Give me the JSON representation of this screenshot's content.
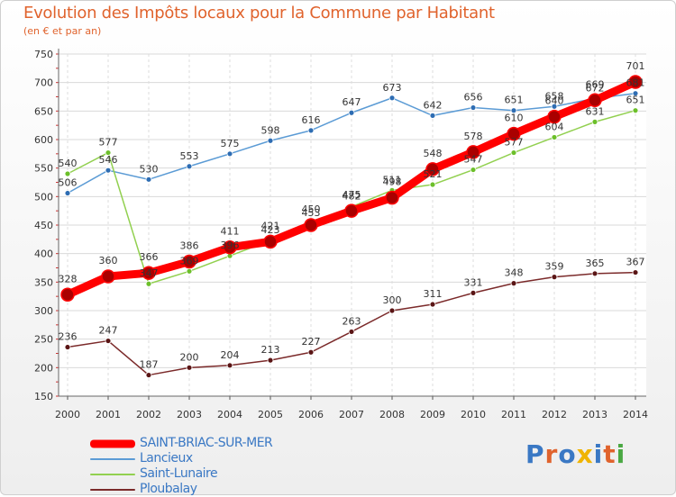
{
  "header": {
    "title": "Evolution des Impôts locaux pour la Commune par Habitant",
    "subtitle": "(en € et par an)"
  },
  "brand": {
    "text": "Proxiti",
    "colors": [
      "#3a78c4",
      "#e0632d",
      "#3a78c4",
      "#f0b400",
      "#3a78c4",
      "#e0632d",
      "#49a842"
    ]
  },
  "chart_data": {
    "type": "line",
    "title": "Evolution des Impôts locaux pour la Commune par Habitant",
    "subtitle": "(en € et par an)",
    "xlabel": "",
    "ylabel": "",
    "ylim": [
      150,
      750
    ],
    "yticks": [
      150,
      200,
      250,
      300,
      350,
      400,
      450,
      500,
      550,
      600,
      650,
      700,
      750
    ],
    "grid": true,
    "legend_position": "bottom-left",
    "categories": [
      "2000",
      "2001",
      "2002",
      "2003",
      "2004",
      "2005",
      "2006",
      "2007",
      "2008",
      "2009",
      "2010",
      "2011",
      "2012",
      "2013",
      "2014"
    ],
    "series": [
      {
        "name": "Lancieux",
        "color": "#5b9bd5",
        "values": [
          506,
          546,
          530,
          553,
          575,
          598,
          616,
          647,
          673,
          642,
          656,
          651,
          658,
          672,
          681
        ]
      },
      {
        "name": "Saint-Lunaire",
        "color": "#92d050",
        "values": [
          540,
          577,
          347,
          369,
          396,
          423,
          453,
          482,
          511,
          521,
          547,
          577,
          604,
          631,
          651
        ]
      },
      {
        "name": "Ploubalay",
        "color": "#7b2a2a",
        "values": [
          236,
          247,
          187,
          200,
          204,
          213,
          227,
          263,
          300,
          311,
          331,
          348,
          359,
          365,
          367
        ]
      },
      {
        "name": "SAINT-BRIAC-SUR-MER",
        "color": "#ff0000",
        "values": [
          328,
          360,
          366,
          386,
          411,
          421,
          450,
          475,
          498,
          548,
          578,
          610,
          640,
          669,
          701
        ]
      }
    ]
  }
}
